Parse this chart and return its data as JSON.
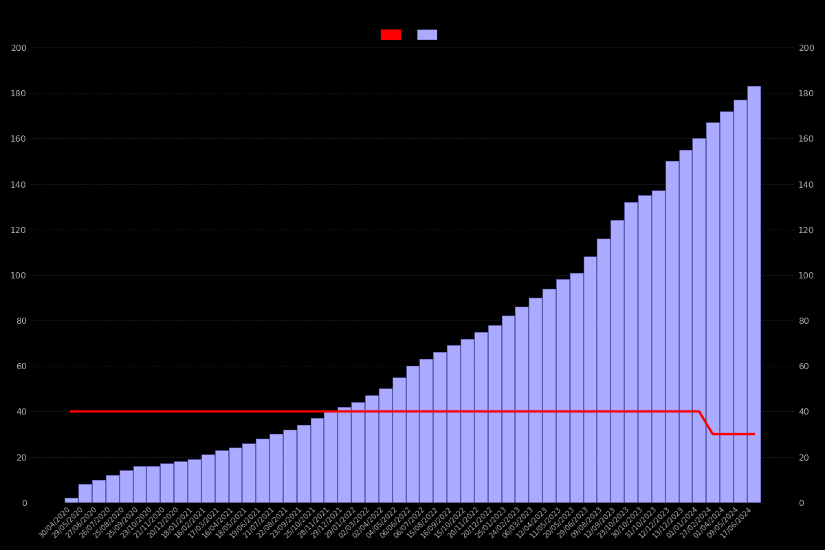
{
  "background_color": "#000000",
  "text_color": "#aaaaaa",
  "bar_color": "#aaaaff",
  "bar_edge_color": "#6666cc",
  "line_color": "#ff0000",
  "ylim": [
    0,
    200
  ],
  "yticks": [
    0,
    20,
    40,
    60,
    80,
    100,
    120,
    140,
    160,
    180,
    200
  ],
  "dates": [
    "30/04/2020",
    "29/05/2020",
    "27/06/2020",
    "26/07/2020",
    "25/08/2020",
    "25/09/2020",
    "23/10/2020",
    "21/11/2020",
    "20/12/2020",
    "18/01/2021",
    "16/02/2021",
    "17/03/2021",
    "16/04/2021",
    "18/05/2021",
    "19/06/2021",
    "21/07/2021",
    "22/08/2021",
    "23/09/2021",
    "25/10/2021",
    "28/11/2021",
    "29/12/2021",
    "29/01/2022",
    "02/03/2022",
    "02/04/2022",
    "04/05/2022",
    "06/06/2022",
    "06/07/2022",
    "15/08/2022",
    "16/09/2022",
    "15/10/2022",
    "20/11/2022",
    "20/12/2022",
    "25/01/2023",
    "24/02/2023",
    "06/03/2023",
    "12/04/2023",
    "11/05/2023",
    "20/05/2023",
    "29/06/2023",
    "09/08/2023",
    "12/09/2023",
    "23/10/2023",
    "30/10/2023",
    "31/10/2023",
    "12/12/2023",
    "13/12/2023",
    "01/01/2024",
    "27/02/2024",
    "01/04/2024",
    "09/05/2024",
    "17/06/2024"
  ],
  "bar_values": [
    2,
    8,
    10,
    12,
    14,
    16,
    16,
    17,
    18,
    19,
    21,
    23,
    24,
    26,
    28,
    30,
    32,
    34,
    37,
    40,
    42,
    44,
    47,
    50,
    55,
    60,
    63,
    66,
    69,
    72,
    75,
    78,
    82,
    86,
    90,
    94,
    98,
    101,
    108,
    116,
    124,
    132,
    135,
    137,
    150,
    155,
    160,
    167,
    172,
    177,
    183
  ],
  "line_values": [
    40,
    40,
    40,
    40,
    40,
    40,
    40,
    40,
    40,
    40,
    40,
    40,
    40,
    40,
    40,
    40,
    40,
    40,
    40,
    40,
    40,
    40,
    40,
    40,
    40,
    40,
    40,
    40,
    40,
    40,
    40,
    40,
    40,
    40,
    40,
    40,
    40,
    40,
    40,
    40,
    40,
    40,
    40,
    40,
    40,
    40,
    40,
    30,
    30,
    30,
    30
  ],
  "grid_color": "#333333",
  "tick_fontsize": 7.5,
  "legend_red_label": "",
  "legend_blue_label": ""
}
